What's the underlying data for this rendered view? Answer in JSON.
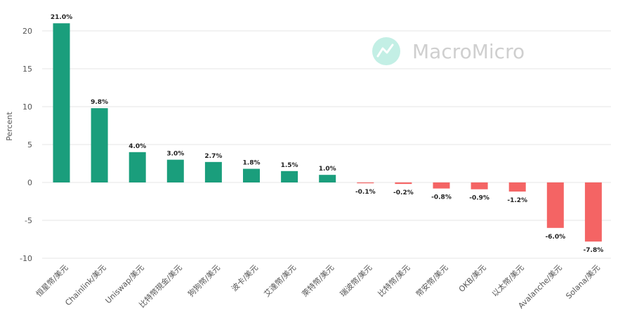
{
  "colors": {
    "positive": "#1a9e7c",
    "negative": "#f46464",
    "grid": "#e6e6e6",
    "axis_text": "#555555",
    "watermark": "#cfcfcf",
    "watermark_icon": "#c3efe5"
  },
  "watermark": {
    "text": "MacroMicro",
    "icon": "line-chart-logo-icon"
  },
  "chart_data": {
    "type": "bar",
    "ylabel": "Percent",
    "xlabel": "",
    "ylim": [
      -10,
      22
    ],
    "yticks": [
      20,
      15,
      10,
      5,
      0,
      -5,
      -10
    ],
    "grid": true,
    "categories": [
      "恒星幣/美元",
      "Chainlink/美元",
      "Uniswap/美元",
      "比特幣現金/美元",
      "狗狗幣/美元",
      "波卡/美元",
      "艾達幣/美元",
      "萊特幣/美元",
      "瑞波幣/美元",
      "比特幣/美元",
      "幣安幣/美元",
      "OKB/美元",
      "以太幣/美元",
      "Avalanche/美元",
      "Solana/美元"
    ],
    "values": [
      21.0,
      9.8,
      4.0,
      3.0,
      2.7,
      1.8,
      1.5,
      1.0,
      -0.1,
      -0.2,
      -0.8,
      -0.9,
      -1.2,
      -6.0,
      -7.8
    ],
    "labels": [
      "21.0%",
      "9.8%",
      "4.0%",
      "3.0%",
      "2.7%",
      "1.8%",
      "1.5%",
      "1.0%",
      "-0.1%",
      "-0.2%",
      "-0.8%",
      "-0.9%",
      "-1.2%",
      "-6.0%",
      "-7.8%"
    ]
  }
}
